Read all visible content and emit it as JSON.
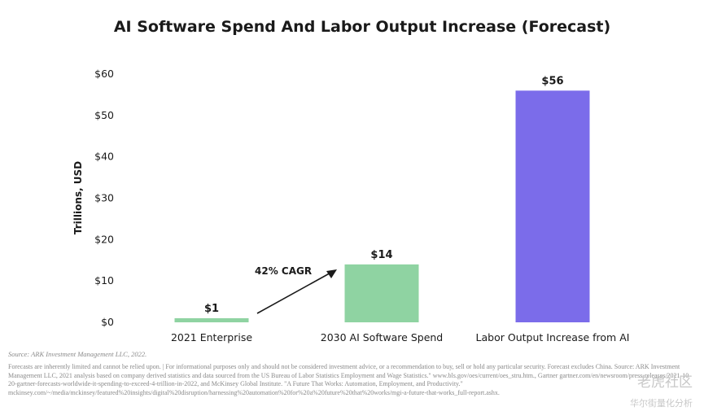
{
  "chart_data": {
    "type": "bar",
    "title": "AI Software Spend And Labor Output Increase (Forecast)",
    "ylabel": "Trillions, USD",
    "xlabel": "",
    "ylim": [
      0,
      60
    ],
    "yticks": [
      0,
      10,
      20,
      30,
      40,
      50,
      60
    ],
    "ytick_labels": [
      "$0",
      "$10",
      "$20",
      "$30",
      "$40",
      "$50",
      "$60"
    ],
    "categories": [
      "2021 Enterprise",
      "2030 AI Software Spend",
      "Labor Output Increase from AI"
    ],
    "values": [
      1,
      14,
      56
    ],
    "data_labels": [
      "$1",
      "$14",
      "$56"
    ],
    "colors": [
      "#8fd3a2",
      "#8fd3a2",
      "#7b6cea"
    ],
    "annotation": "42% CAGR",
    "grid": false,
    "legend": "none"
  },
  "footer": {
    "source": "Source: ARK Investment Management LLC, 2022.",
    "disclaimer": "Forecasts are inherently limited and cannot be relied upon. | For informational purposes only and should not be considered investment advice, or a recommendation to buy, sell or hold any particular security. Forecast excludes China. Source: ARK Investment Management LLC, 2021 analysis based on company derived statistics and data sourced from the US Bureau of Labor Statistics Employment and Wage Statistics.\" www.bls.gov/oes/current/oes_stru.htm., Gartner gartner.com/en/newsroom/press-releases/2021-10-20-gartner-forecasts-worldwide-it-spending-to-exceed-4-trillion-in-2022, and McKinsey Global Institute. \"A Future That Works: Automation, Employment, and Productivity.\" mckinsey.com/~/media/mckinsey/featured%20insights/digital%20disruption/harnessing%20automation%20for%20a%20future%20that%20works/mgi-a-future-that-works_full-report.ashx."
  },
  "watermark": {
    "line1": "老虎社区",
    "line2": "华尔街量化分析"
  }
}
